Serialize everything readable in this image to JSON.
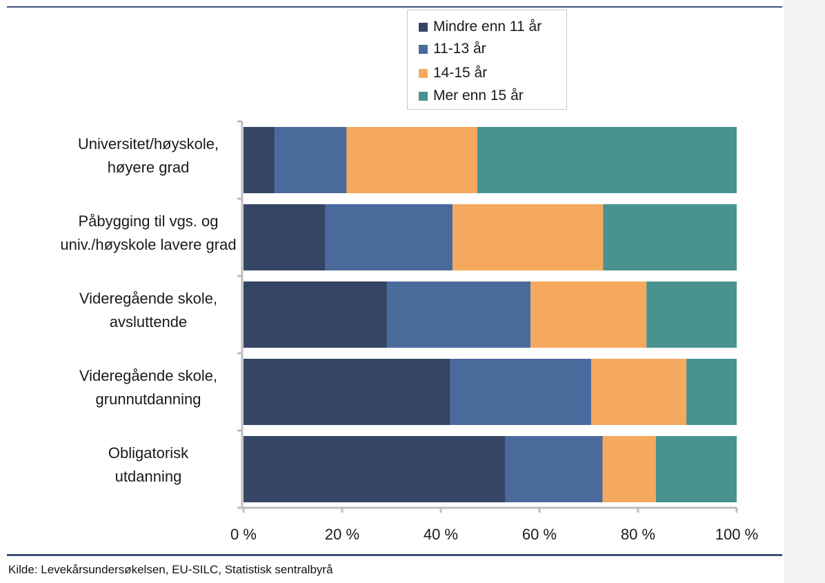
{
  "chart_data": {
    "type": "bar",
    "orientation": "horizontal",
    "stacked": true,
    "percent_stacked": true,
    "categories": [
      "Universitet/høyskole, høyere grad",
      "Påbygging til vgs. og univ./høyskole lavere grad",
      "Videregående skole, avsluttende",
      "Videregående skole, grunnutdanning",
      "Obligatorisk utdanning"
    ],
    "category_lines": [
      [
        "Universitet/høyskole,",
        "høyere grad"
      ],
      [
        "Påbygging til vgs. og",
        "univ./høyskole lavere grad"
      ],
      [
        "Videregående skole,",
        "avsluttende"
      ],
      [
        "Videregående skole,",
        "grunnutdanning"
      ],
      [
        "Obligatorisk",
        "utdanning"
      ]
    ],
    "series": [
      {
        "name": "Mindre enn 11 år",
        "color": "#344566",
        "values": [
          6.3,
          16.6,
          29.1,
          41.9,
          53.1
        ]
      },
      {
        "name": "11-13 år",
        "color": "#4a6a9c",
        "values": [
          14.6,
          25.8,
          29.1,
          28.6,
          19.7
        ]
      },
      {
        "name": "14-15 år",
        "color": "#f5a95e",
        "values": [
          26.5,
          30.5,
          23.5,
          19.3,
          10.8
        ]
      },
      {
        "name": "Mer enn 15 år",
        "color": "#4a9290",
        "values": [
          52.6,
          27.1,
          18.3,
          10.2,
          16.4
        ]
      }
    ],
    "xlim": [
      0,
      100
    ],
    "x_ticks": [
      "0 %",
      "20 %",
      "40 %",
      "60 %",
      "80 %",
      "100 %"
    ],
    "grid": false,
    "legend_position": "top-center"
  },
  "source": "Kilde: Levekårsundersøkelsen, EU-SILC, Statistisk sentralbyrå"
}
